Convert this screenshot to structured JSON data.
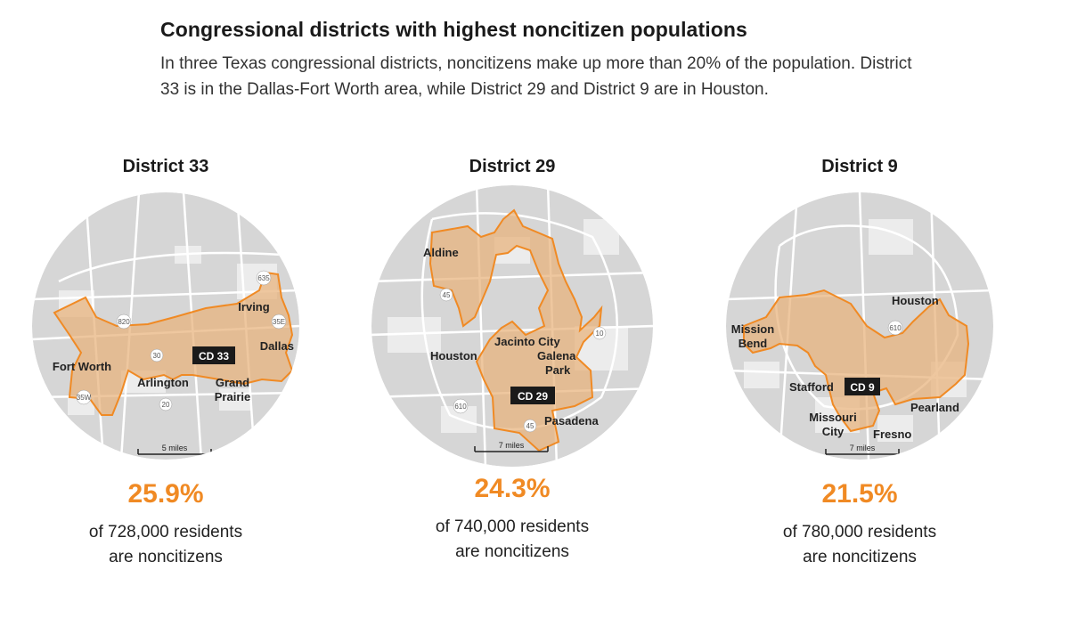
{
  "title": "Congressional districts with highest noncitizen populations",
  "subtitle": "In three Texas congressional districts, noncitizens make up more than 20% of the population. District 33 is in the Dallas-Fort Worth area, while District 29 and District 9 are in Houston.",
  "colors": {
    "accent": "#f08a24",
    "district_fill": "#e8b27a",
    "map_bg": "#d6d6d6",
    "roads": "#ffffff"
  },
  "panels": [
    {
      "district": "District 33",
      "cd_label": "CD 33",
      "percent": "25.9%",
      "residents": "of 728,000 residents",
      "are": "are noncitizens",
      "scale": "5 miles",
      "places": {
        "fort_worth": "Fort Worth",
        "arlington": "Arlington",
        "grand": "Grand",
        "prairie": "Prairie",
        "irving": "Irving",
        "dallas": "Dallas"
      },
      "highways": {
        "h635": "635",
        "h820": "820",
        "h35e": "35E",
        "h30": "30",
        "h20": "20",
        "h35w": "35W"
      }
    },
    {
      "district": "District 29",
      "cd_label": "CD 29",
      "percent": "24.3%",
      "residents": "of 740,000 residents",
      "are": "are noncitizens",
      "scale": "7 miles",
      "places": {
        "aldine": "Aldine",
        "houston": "Houston",
        "jacinto": "Jacinto City",
        "galena": "Galena",
        "park": "Park",
        "pasadena": "Pasadena"
      },
      "highways": {
        "h45a": "45",
        "h10": "10",
        "h610": "610",
        "h45b": "45"
      }
    },
    {
      "district": "District 9",
      "cd_label": "CD 9",
      "percent": "21.5%",
      "residents": "of 780,000 residents",
      "are": "are noncitizens",
      "scale": "7 miles",
      "places": {
        "mission": "Mission",
        "bend": "Bend",
        "houston": "Houston",
        "stafford": "Stafford",
        "missouri": "Missouri",
        "city": "City",
        "fresno": "Fresno",
        "pearland": "Pearland"
      },
      "highways": {
        "h610": "610"
      }
    }
  ]
}
